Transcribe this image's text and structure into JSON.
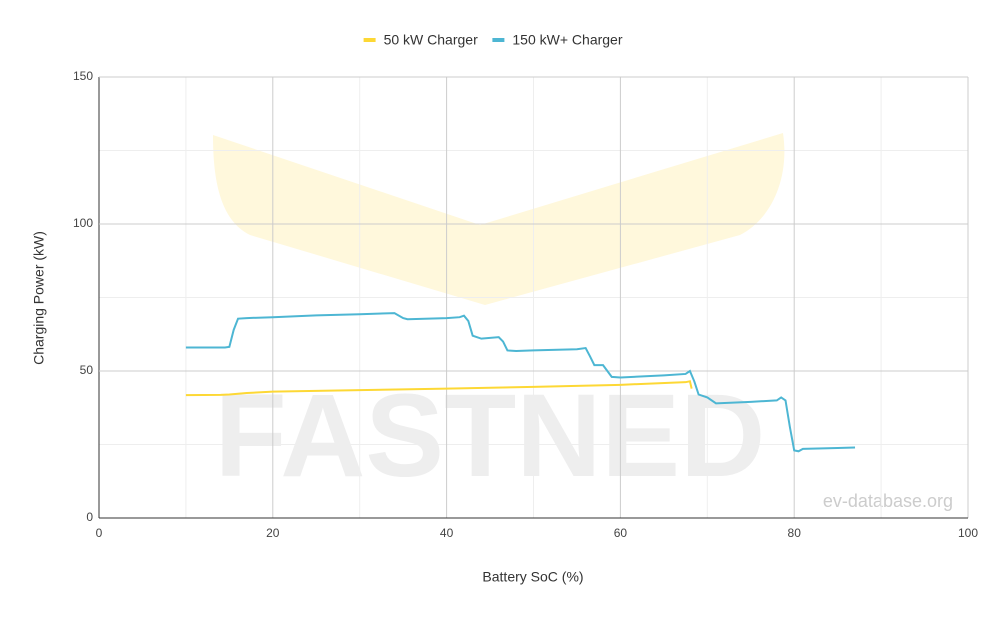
{
  "chart_data": {
    "type": "line",
    "x_label": "Battery SoC (%)",
    "y_label": "Charging Power (kW)",
    "watermarks": [
      "FASTNED",
      "ev-database.org"
    ],
    "legend": "top",
    "grid": true,
    "xlim": [
      0,
      100
    ],
    "xticks": [
      0,
      20,
      40,
      60,
      80,
      100
    ],
    "ylim": [
      0,
      150
    ],
    "yticks": [
      0,
      50,
      100,
      150
    ],
    "series": [
      {
        "name": "50 kW Charger",
        "color": "#fdd835",
        "x": [
          10,
          14,
          15,
          17,
          20,
          30,
          40,
          50,
          60,
          67.5,
          68,
          68.2
        ],
        "values": [
          41.8,
          41.9,
          42,
          42.5,
          43,
          43.5,
          44,
          44.6,
          45.3,
          46.2,
          46.5,
          44
        ]
      },
      {
        "name": "150 kW+ Charger",
        "color": "#4db6d3",
        "x": [
          10,
          14.5,
          15,
          15.5,
          16,
          17,
          20,
          25,
          30,
          34,
          35,
          35.5,
          40,
          41.5,
          42,
          42.5,
          43,
          44,
          46,
          46.5,
          47,
          48,
          50,
          55,
          56,
          56.5,
          57,
          58,
          58.5,
          59,
          60,
          65,
          67.5,
          68,
          68.5,
          69,
          70,
          71,
          75,
          78,
          78.5,
          79,
          79.5,
          80,
          80.5,
          81,
          85,
          87
        ],
        "values": [
          58,
          58,
          58.2,
          64,
          67.8,
          68,
          68.3,
          68.9,
          69.3,
          69.7,
          68,
          67.6,
          68,
          68.3,
          68.8,
          67,
          62,
          61,
          61.5,
          60,
          57,
          56.8,
          57,
          57.4,
          57.8,
          55,
          52,
          52,
          50,
          48,
          47.8,
          48.5,
          49,
          50,
          46.5,
          42,
          41,
          39,
          39.5,
          40,
          41,
          40,
          31,
          23,
          22.7,
          23.5,
          23.8,
          24
        ]
      }
    ]
  }
}
